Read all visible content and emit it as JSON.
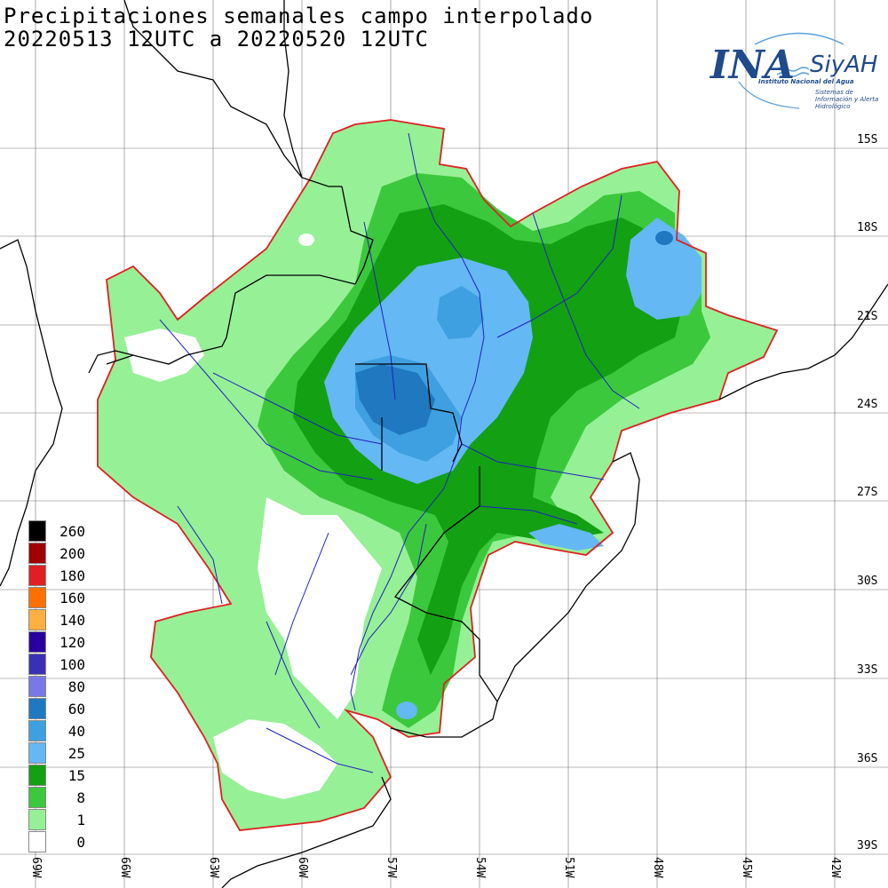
{
  "title": {
    "line1": "Precipitaciones semanales campo interpolado",
    "line2": "20220513 12UTC a 20220520 12UTC"
  },
  "logo": {
    "name": "INA",
    "system": "SiyAH",
    "institute": "Instituto Nacional del Agua",
    "subtitle": "Sistemas de Información y Alerta Hidrológico",
    "color": "#1f4a8c"
  },
  "latitudes": [
    "15S",
    "18S",
    "21S",
    "24S",
    "27S",
    "30S",
    "33S",
    "36S",
    "39S"
  ],
  "longitudes": [
    "69W",
    "66W",
    "63W",
    "60W",
    "57W",
    "54W",
    "51W",
    "48W",
    "45W",
    "42W"
  ],
  "legend": [
    {
      "label": "260",
      "color": "#000000"
    },
    {
      "label": "200",
      "color": "#a00000"
    },
    {
      "label": "180",
      "color": "#e02020"
    },
    {
      "label": "160",
      "color": "#ff7000"
    },
    {
      "label": "140",
      "color": "#ffb040"
    },
    {
      "label": "120",
      "color": "#2800a0"
    },
    {
      "label": "100",
      "color": "#3a30b8"
    },
    {
      "label": "80",
      "color": "#7878e8"
    },
    {
      "label": "60",
      "color": "#1f78c0"
    },
    {
      "label": "40",
      "color": "#3ea0e0"
    },
    {
      "label": "25",
      "color": "#64b8f4"
    },
    {
      "label": "15",
      "color": "#13a013"
    },
    {
      "label": "8",
      "color": "#3cc83c"
    },
    {
      "label": "1",
      "color": "#96f096"
    },
    {
      "label": "0",
      "color": "#ffffff"
    }
  ]
}
